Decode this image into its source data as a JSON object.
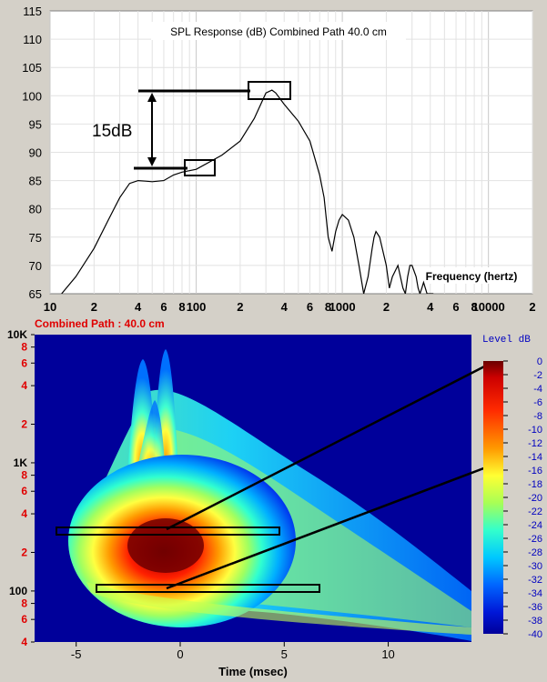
{
  "spl": {
    "title": "SPL Response (dB)   Combined   Path 40.0 cm",
    "x_axis_label": "Frequency (hertz)",
    "y_ticks": [
      "115",
      "110",
      "105",
      "100",
      "95",
      "90",
      "85",
      "80",
      "75",
      "70",
      "65"
    ],
    "x_ticks": [
      "10",
      "2",
      "4",
      "6",
      "8",
      "100",
      "2",
      "4",
      "6",
      "8",
      "1000",
      "2",
      "4",
      "6",
      "8",
      "10000",
      "2"
    ],
    "annotation": "15dB"
  },
  "csd": {
    "header": "Combined     Path : 40.0 cm",
    "y_ticks": [
      "10K",
      "8",
      "6",
      "4",
      "2",
      "1K",
      "8",
      "6",
      "4",
      "2",
      "100",
      "8",
      "6",
      "4"
    ],
    "x_ticks": [
      "-5",
      "0",
      "5",
      "10"
    ],
    "x_axis_label": "Time (msec)",
    "colorbar_title": "Level   dB",
    "colorbar_ticks": [
      "0",
      "-2",
      "-4",
      "-6",
      "-8",
      "-10",
      "-12",
      "-14",
      "-16",
      "-18",
      "-20",
      "-22",
      "-24",
      "-26",
      "-28",
      "-30",
      "-32",
      "-34",
      "-36",
      "-38",
      "-40"
    ]
  },
  "colors": {
    "plot_bg": "#ffffff",
    "window_bg": "#d4d0c8",
    "csd_bg": "#00009a",
    "label_red": "#e00000"
  },
  "chart_data": [
    {
      "type": "line",
      "title": "SPL Response (dB)   Combined   Path 40.0 cm",
      "xlabel": "Frequency (hertz)",
      "ylabel": "",
      "xscale": "log",
      "xlim": [
        10,
        20000
      ],
      "ylim": [
        65,
        115
      ],
      "grid": true,
      "series": [
        {
          "x": [
            12,
            15,
            20,
            25,
            30,
            35,
            40,
            45,
            50,
            60,
            70,
            80,
            100,
            150,
            200,
            250,
            300,
            330,
            350,
            400,
            500,
            600,
            700,
            750,
            800,
            850,
            900,
            950,
            1000,
            1100,
            1200,
            1300,
            1400,
            1500,
            1600,
            1650,
            1700,
            1800,
            2000,
            2100,
            2200,
            2400,
            2600,
            2700,
            2800,
            2900,
            3000,
            3200,
            3300,
            3400,
            3500,
            3600,
            3700,
            3800,
            4000,
            4200
          ],
          "y": [
            65,
            68,
            73,
            78,
            82,
            84.5,
            85,
            84.9,
            84.8,
            85,
            86,
            86.5,
            87,
            89.5,
            92,
            96,
            100.5,
            101,
            100.5,
            98.5,
            95.5,
            92,
            86,
            82,
            75,
            72.5,
            76,
            78,
            79,
            78,
            75,
            70,
            65,
            68,
            73,
            75,
            76,
            75,
            70,
            66,
            68,
            70,
            66,
            65,
            68,
            70,
            70,
            68,
            66,
            65,
            66,
            67,
            66,
            65,
            65,
            65
          ]
        }
      ]
    },
    {
      "type": "heatmap",
      "title": "",
      "header": "Combined     Path : 40.0 cm",
      "xlabel": "Time (msec)",
      "ylabel": "",
      "xlim": [
        -7,
        14
      ],
      "ylim": [
        40,
        10000
      ],
      "yscale": "log",
      "colorbar_label": "Level   dB",
      "colorbar_range": [
        -40,
        0
      ],
      "peak": {
        "time_msec": 0,
        "freq_hz": 300,
        "level_db": 0
      }
    }
  ]
}
